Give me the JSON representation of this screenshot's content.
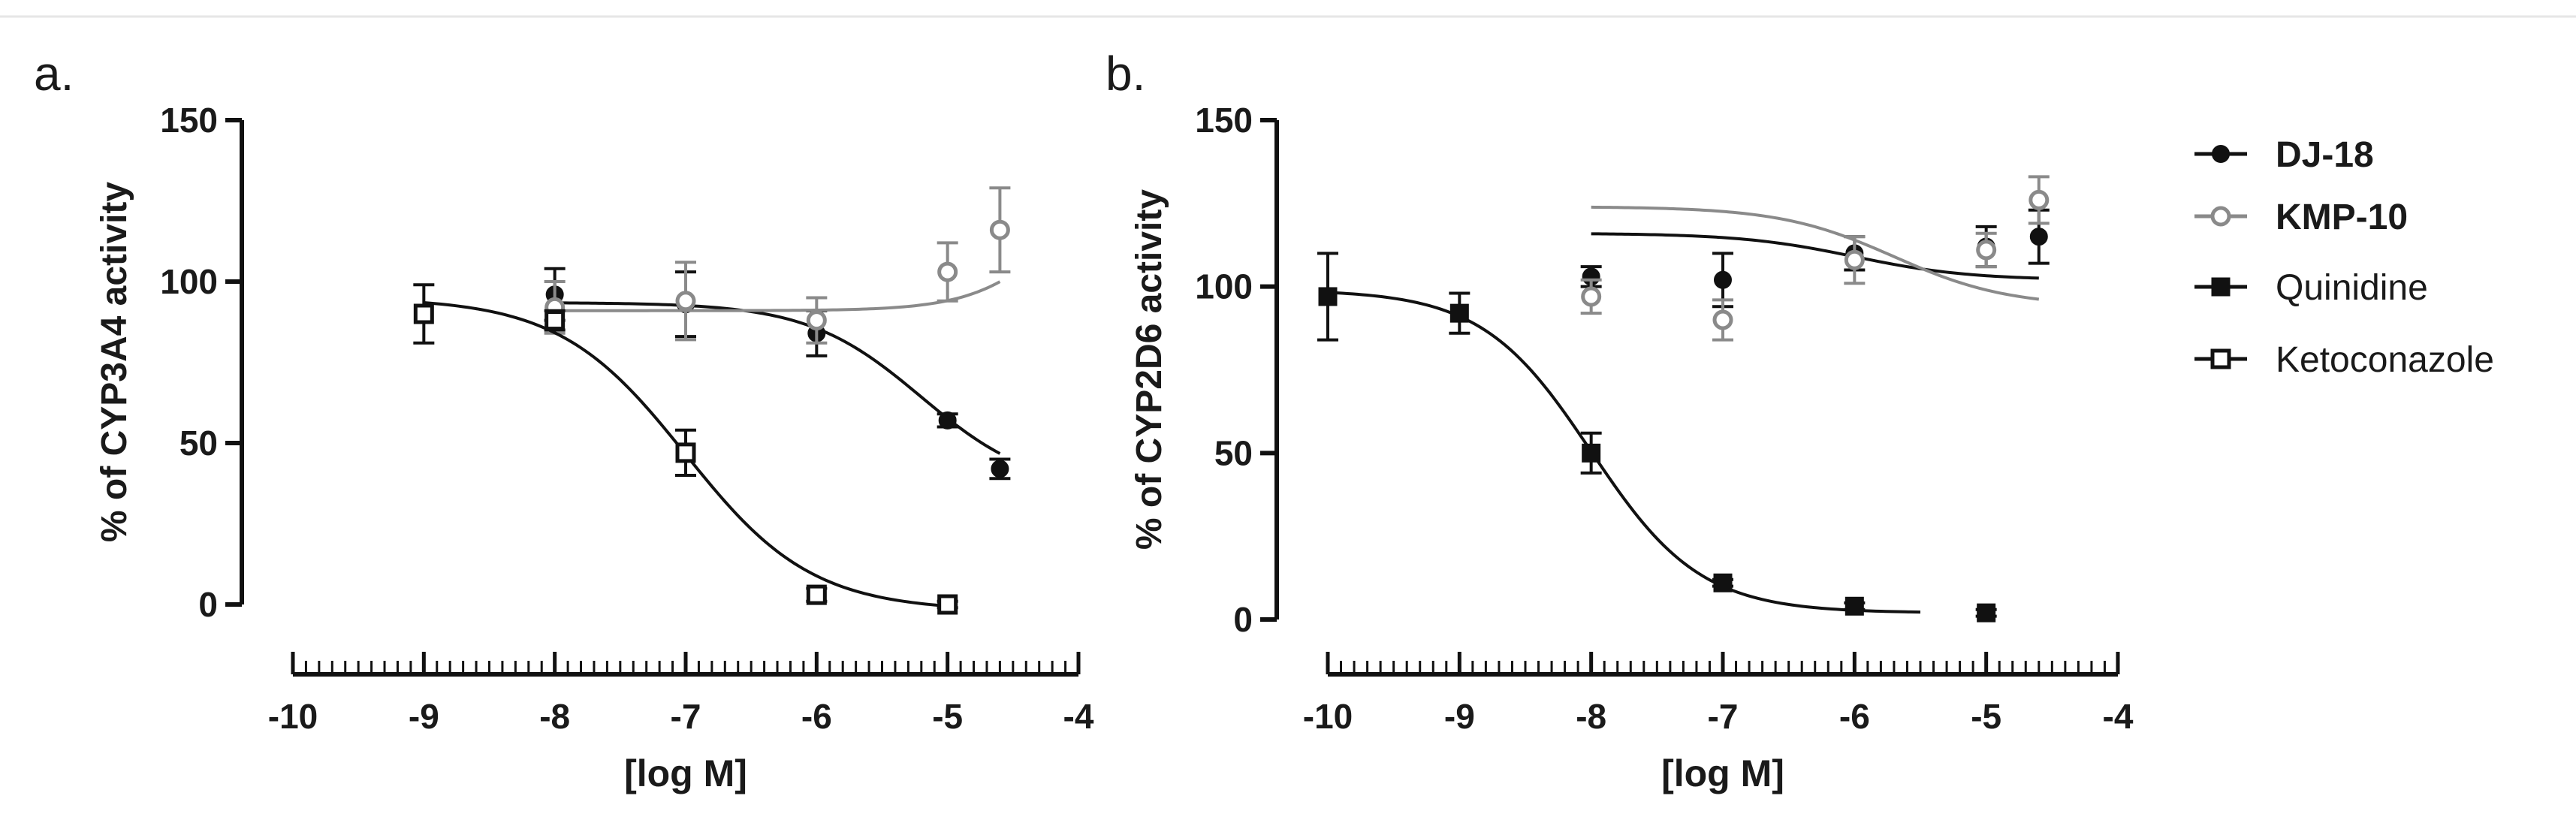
{
  "figure": {
    "legend": {
      "entries": [
        {
          "name": "DJ-18",
          "marker": "filled-circle",
          "color": "#111111",
          "bold": true
        },
        {
          "name": "KMP-10",
          "marker": "open-circle",
          "color": "#8a8a8a",
          "bold": true
        },
        {
          "name": "Quinidine",
          "marker": "filled-square",
          "color": "#111111",
          "bold": false
        },
        {
          "name": "Ketoconazole",
          "marker": "open-square",
          "color": "#111111",
          "bold": false
        }
      ]
    }
  },
  "chart_data": [
    {
      "type": "scatter",
      "panel_label": "a.",
      "title": "",
      "xlabel": "[log M]",
      "ylabel": "% of CYP3A4 activity",
      "xlim": [
        -10,
        -4
      ],
      "ylim": [
        0,
        150
      ],
      "xticks": [
        -10,
        -9,
        -8,
        -7,
        -6,
        -5,
        -4
      ],
      "xtick_labels": [
        "-10",
        "-9",
        "-8",
        "-7",
        "-6",
        "-5",
        "-4"
      ],
      "yticks": [
        0,
        50,
        100,
        150
      ],
      "ytick_labels": [
        "0",
        "50",
        "100",
        "150"
      ],
      "grid": false,
      "legend_position": "right",
      "series": [
        {
          "name": "DJ-18",
          "marker": "filled-circle",
          "color": "#111111",
          "x": [
            -8,
            -7,
            -6,
            -5,
            -4.6
          ],
          "y": [
            96,
            93,
            84,
            57,
            42
          ],
          "err": [
            8,
            10,
            7,
            2,
            3
          ],
          "curve": {
            "top": 93.5,
            "bottom": 35,
            "logEC50": -5.2,
            "hill": 1.0,
            "xmin": -8,
            "xmax": -4.6
          }
        },
        {
          "name": "KMP-10",
          "marker": "open-circle",
          "color": "#8a8a8a",
          "x": [
            -8,
            -7,
            -6,
            -5,
            -4.6
          ],
          "y": [
            92,
            94,
            88,
            103,
            116
          ],
          "err": [
            8,
            12,
            7,
            9,
            13
          ],
          "curve": {
            "top": 91,
            "bottom": 140,
            "logEC50": -4.1,
            "hill": 1.3,
            "xmin": -8,
            "xmax": -4.6
          }
        },
        {
          "name": "Ketoconazole",
          "marker": "open-square",
          "color": "#111111",
          "x": [
            -9,
            -8,
            -7,
            -6,
            -5
          ],
          "y": [
            90,
            88,
            47,
            3,
            0
          ],
          "err": [
            9,
            3,
            7,
            2,
            1
          ],
          "curve": {
            "top": 95,
            "bottom": -2,
            "logEC50": -7.0,
            "hill": 0.9,
            "xmin": -9,
            "xmax": -5
          }
        }
      ]
    },
    {
      "type": "scatter",
      "panel_label": "b.",
      "title": "",
      "xlabel": "[log M]",
      "ylabel": "% of CYP2D6 activity",
      "xlim": [
        -10,
        -4
      ],
      "ylim": [
        0,
        150
      ],
      "xticks": [
        -10,
        -9,
        -8,
        -7,
        -6,
        -5,
        -4
      ],
      "xtick_labels": [
        "-10",
        "-9",
        "-8",
        "-7",
        "-6",
        "-5",
        "-4"
      ],
      "yticks": [
        0,
        50,
        100,
        150
      ],
      "ytick_labels": [
        "0",
        "50",
        "100",
        "150"
      ],
      "grid": false,
      "legend_position": "right",
      "series": [
        {
          "name": "DJ-18",
          "marker": "filled-circle",
          "color": "#111111",
          "x": [
            -8,
            -7,
            -6,
            -5,
            -4.6
          ],
          "y": [
            103,
            102,
            110,
            112,
            115
          ],
          "err": [
            3,
            8,
            5,
            6,
            8
          ],
          "curve": {
            "top": 116,
            "bottom": 102,
            "logEC50": -6.0,
            "hill": 1.0,
            "xmin": -8,
            "xmax": -4.6
          }
        },
        {
          "name": "KMP-10",
          "marker": "open-circle",
          "color": "#8a8a8a",
          "x": [
            -8,
            -7,
            -6,
            -5,
            -4.6
          ],
          "y": [
            97,
            90,
            108,
            111,
            126
          ],
          "err": [
            5,
            6,
            7,
            5,
            7
          ],
          "curve": {
            "top": 124,
            "bottom": 94,
            "logEC50": -5.7,
            "hill": 1.0,
            "xmin": -8,
            "xmax": -4.6
          }
        },
        {
          "name": "Quinidine",
          "marker": "filled-square",
          "color": "#111111",
          "x": [
            -10,
            -9,
            -8,
            -7,
            -6,
            -5
          ],
          "y": [
            97,
            92,
            50,
            11,
            4,
            2
          ],
          "err": [
            13,
            6,
            6,
            1,
            1,
            1
          ],
          "curve": {
            "top": 99,
            "bottom": 2,
            "logEC50": -8.0,
            "hill": 1.05,
            "xmin": -10,
            "xmax": -5.5
          }
        }
      ]
    }
  ]
}
